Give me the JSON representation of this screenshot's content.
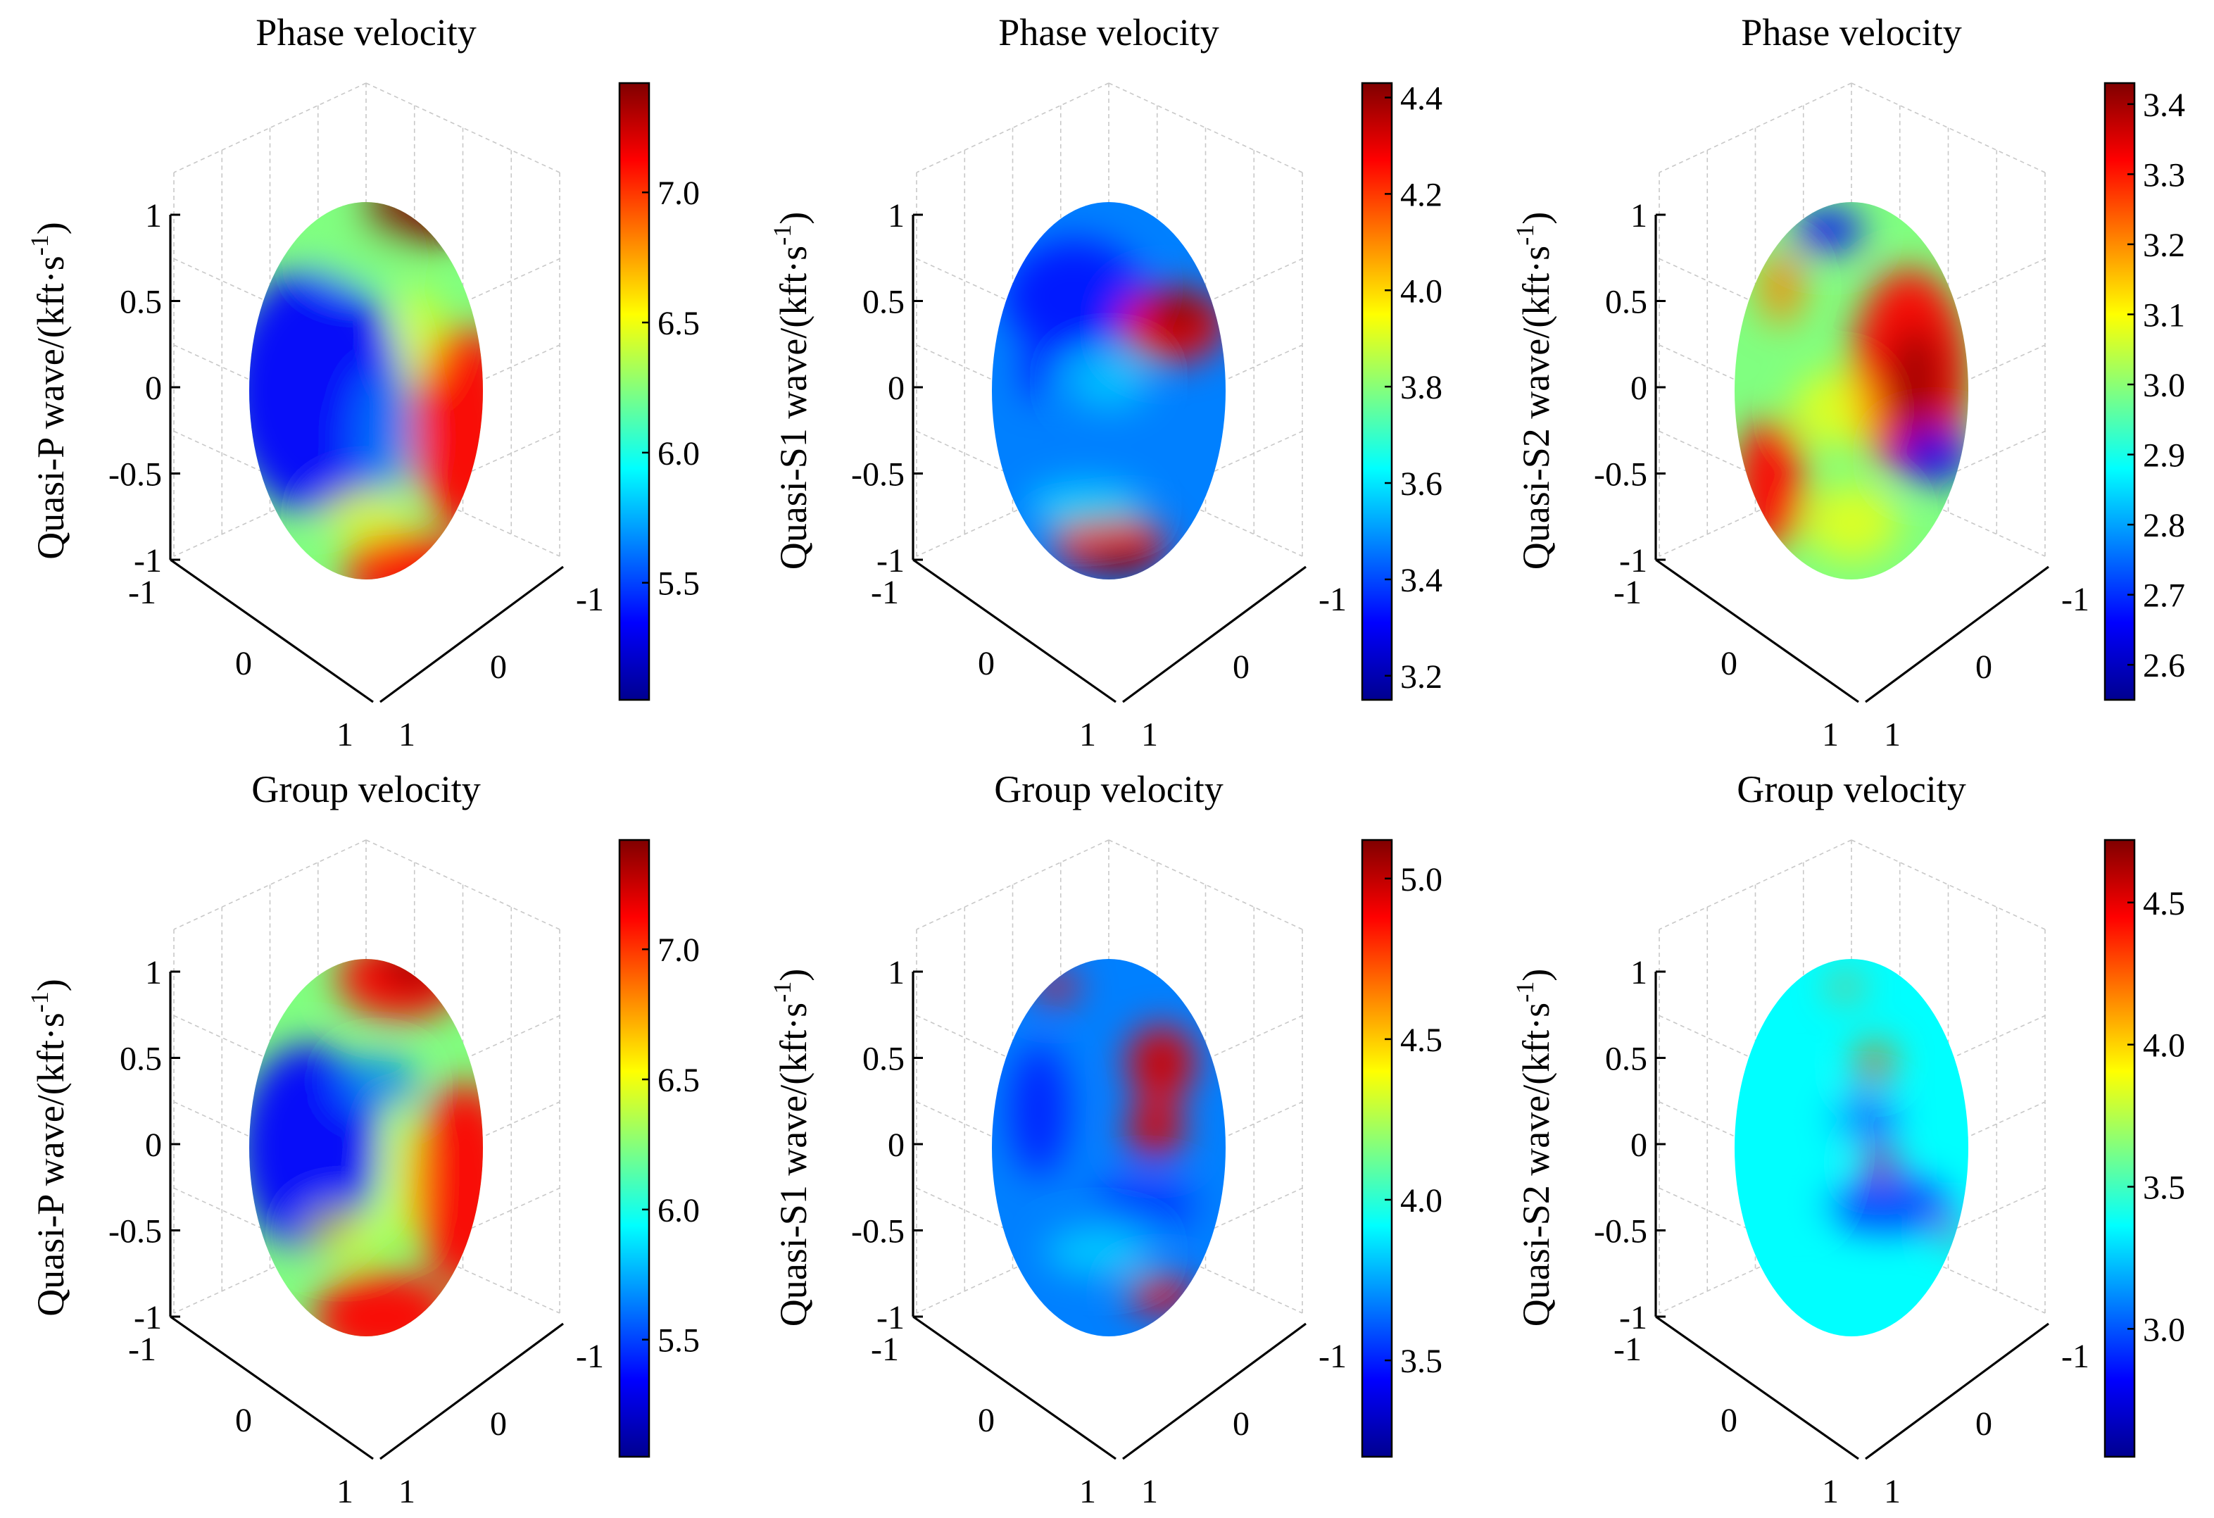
{
  "figure": {
    "colormap": [
      "#00008f",
      "#0000ff",
      "#0080ff",
      "#00ffff",
      "#80ff80",
      "#ffff00",
      "#ff8000",
      "#ff0000",
      "#800000"
    ]
  },
  "chart_data": [
    {
      "type": "surface-3d",
      "title": "Phase velocity",
      "zlabel_main": "Quasi-P wave/(kft·s",
      "zlabel_sup": "-1",
      "zlabel_end": ")",
      "axis_ticks": {
        "x": [
          "-1",
          "0",
          "1"
        ],
        "y": [
          "-1",
          "0",
          "1"
        ],
        "z": [
          "-1",
          "-0.5",
          "0",
          "0.5",
          "1"
        ]
      },
      "axis_range": {
        "x": [
          -1,
          1
        ],
        "y": [
          -1,
          1
        ],
        "z": [
          -1,
          1
        ]
      },
      "colorbar": {
        "min": 5.05,
        "max": 7.42,
        "ticks": [
          "5.5",
          "6.0",
          "6.5",
          "7.0"
        ],
        "tick_values": [
          5.5,
          6.0,
          6.5,
          7.0
        ]
      },
      "grid": true
    },
    {
      "type": "surface-3d",
      "title": "Phase velocity",
      "zlabel_main": "Quasi-S1 wave/(kft·s",
      "zlabel_sup": "-1",
      "zlabel_end": ")",
      "axis_ticks": {
        "x": [
          "-1",
          "0",
          "1"
        ],
        "y": [
          "-1",
          "0",
          "1"
        ],
        "z": [
          "-1",
          "-0.5",
          "0",
          "0.5",
          "1"
        ]
      },
      "axis_range": {
        "x": [
          -1,
          1
        ],
        "y": [
          -1,
          1
        ],
        "z": [
          -1,
          1
        ]
      },
      "colorbar": {
        "min": 3.15,
        "max": 4.43,
        "ticks": [
          "3.2",
          "3.4",
          "3.6",
          "3.8",
          "4.0",
          "4.2",
          "4.4"
        ],
        "tick_values": [
          3.2,
          3.4,
          3.6,
          3.8,
          4.0,
          4.2,
          4.4
        ]
      },
      "grid": true
    },
    {
      "type": "surface-3d",
      "title": "Phase velocity",
      "zlabel_main": "Quasi-S2 wave/(kft·s",
      "zlabel_sup": "-1",
      "zlabel_end": ")",
      "axis_ticks": {
        "x": [
          "-1",
          "0",
          "1"
        ],
        "y": [
          "-1",
          "0",
          "1"
        ],
        "z": [
          "-1",
          "-0.5",
          "0",
          "0.5",
          "1"
        ]
      },
      "axis_range": {
        "x": [
          -1,
          1
        ],
        "y": [
          -1,
          1
        ],
        "z": [
          -1,
          1
        ]
      },
      "colorbar": {
        "min": 2.55,
        "max": 3.43,
        "ticks": [
          "2.6",
          "2.7",
          "2.8",
          "2.9",
          "3.0",
          "3.1",
          "3.2",
          "3.3",
          "3.4"
        ],
        "tick_values": [
          2.6,
          2.7,
          2.8,
          2.9,
          3.0,
          3.1,
          3.2,
          3.3,
          3.4
        ]
      },
      "grid": true
    },
    {
      "type": "surface-3d",
      "title": "Group velocity",
      "zlabel_main": "Quasi-P wave/(kft·s",
      "zlabel_sup": "-1",
      "zlabel_end": ")",
      "axis_ticks": {
        "x": [
          "-1",
          "0",
          "1"
        ],
        "y": [
          "-1",
          "0",
          "1"
        ],
        "z": [
          "-1",
          "-0.5",
          "0",
          "0.5",
          "1"
        ]
      },
      "axis_range": {
        "x": [
          -1,
          1
        ],
        "y": [
          -1,
          1
        ],
        "z": [
          -1,
          1
        ]
      },
      "colorbar": {
        "min": 5.05,
        "max": 7.42,
        "ticks": [
          "5.5",
          "6.0",
          "6.5",
          "7.0"
        ],
        "tick_values": [
          5.5,
          6.0,
          6.5,
          7.0
        ]
      },
      "grid": true
    },
    {
      "type": "surface-3d",
      "title": "Group velocity",
      "zlabel_main": "Quasi-S1 wave/(kft·s",
      "zlabel_sup": "-1",
      "zlabel_end": ")",
      "axis_ticks": {
        "x": [
          "-1",
          "0",
          "1"
        ],
        "y": [
          "-1",
          "0",
          "1"
        ],
        "z": [
          "-1",
          "-0.5",
          "0",
          "0.5",
          "1"
        ]
      },
      "axis_range": {
        "x": [
          -1,
          1
        ],
        "y": [
          -1,
          1
        ],
        "z": [
          -1,
          1
        ]
      },
      "colorbar": {
        "min": 3.2,
        "max": 5.12,
        "ticks": [
          "3.5",
          "4.0",
          "4.5",
          "5.0"
        ],
        "tick_values": [
          3.5,
          4.0,
          4.5,
          5.0
        ]
      },
      "grid": true
    },
    {
      "type": "surface-3d",
      "title": "Group velocity",
      "zlabel_main": "Quasi-S2 wave/(kft·s",
      "zlabel_sup": "-1",
      "zlabel_end": ")",
      "axis_ticks": {
        "x": [
          "-1",
          "0",
          "1"
        ],
        "y": [
          "-1",
          "0",
          "1"
        ],
        "z": [
          "-1",
          "-0.5",
          "0",
          "0.5",
          "1"
        ]
      },
      "axis_range": {
        "x": [
          -1,
          1
        ],
        "y": [
          -1,
          1
        ],
        "z": [
          -1,
          1
        ]
      },
      "colorbar": {
        "min": 2.55,
        "max": 4.72,
        "ticks": [
          "3.0",
          "3.5",
          "4.0",
          "4.5"
        ],
        "tick_values": [
          3.0,
          3.5,
          4.0,
          4.5
        ]
      },
      "grid": true
    }
  ]
}
